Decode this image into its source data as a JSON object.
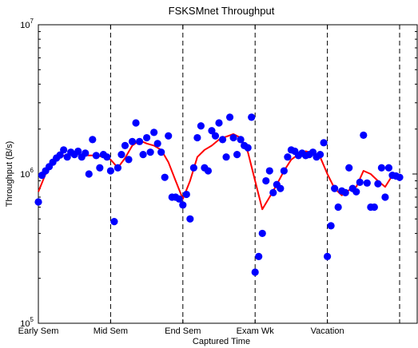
{
  "chart_data": {
    "type": "scatter",
    "title": "FSKSMnet Throughput",
    "xlabel": "Captured Time",
    "ylabel": "Throughput (B/s)",
    "y_scale": "log",
    "ylim": [
      100000,
      10000000
    ],
    "xlim": [
      0,
      100
    ],
    "yticks": [
      {
        "value": 100000,
        "base": "10",
        "exp": "5"
      },
      {
        "value": 1000000,
        "base": "10",
        "exp": "6"
      },
      {
        "value": 10000000,
        "base": "10",
        "exp": "7"
      }
    ],
    "xticks": [
      {
        "value": 0,
        "label": "Early Sem"
      },
      {
        "value": 20,
        "label": "Mid Sem"
      },
      {
        "value": 40,
        "label": "End Sem"
      },
      {
        "value": 60,
        "label": "Exam Wk"
      },
      {
        "value": 80,
        "label": "Vacation"
      },
      {
        "value": 100,
        "label": ""
      }
    ],
    "period_boundaries": [
      20,
      40,
      60,
      80,
      100
    ],
    "grid": false,
    "colors": {
      "points": "#0000ff",
      "line": "#ff0000",
      "boundary": "#000000"
    },
    "series": [
      {
        "kind": "points",
        "x": [
          0,
          1,
          2,
          3,
          4,
          5,
          6,
          7,
          8,
          9,
          10,
          11,
          12,
          13,
          14,
          15,
          16,
          17,
          18,
          19,
          20,
          21,
          22,
          23,
          24,
          25,
          26,
          27,
          28,
          29,
          30,
          31,
          32,
          33,
          34,
          35,
          36,
          37,
          38,
          39,
          40,
          41,
          42,
          43,
          44,
          45,
          46,
          47,
          48,
          49,
          50,
          51,
          52,
          53,
          54,
          55,
          56,
          57,
          58,
          59,
          60,
          61,
          62,
          63,
          64,
          65,
          66,
          67,
          68,
          69,
          70,
          71,
          72,
          73,
          74,
          75,
          76,
          77,
          78,
          79,
          80,
          81,
          82,
          83,
          84,
          85,
          86,
          87,
          88,
          89,
          90,
          91,
          92,
          93,
          94,
          95,
          96,
          97,
          98,
          99,
          100
        ],
        "y": [
          650000,
          980000,
          1050000,
          1120000,
          1200000,
          1280000,
          1340000,
          1450000,
          1300000,
          1400000,
          1350000,
          1420000,
          1300000,
          1380000,
          1000000,
          1700000,
          1330000,
          1100000,
          1350000,
          1300000,
          1050000,
          480000,
          1100000,
          1350000,
          1550000,
          1250000,
          1650000,
          2200000,
          1650000,
          1350000,
          1750000,
          1400000,
          1900000,
          1600000,
          1400000,
          950000,
          1800000,
          700000,
          700000,
          680000,
          620000,
          730000,
          500000,
          1100000,
          1750000,
          2100000,
          1100000,
          1050000,
          1950000,
          1800000,
          2200000,
          1700000,
          1300000,
          2400000,
          1750000,
          1350000,
          1700000,
          1550000,
          1500000,
          2400000,
          220000,
          280000,
          400000,
          900000,
          1050000,
          750000,
          850000,
          800000,
          1050000,
          1300000,
          1450000,
          1420000,
          1330000,
          1380000,
          1330000,
          1350000,
          1400000,
          1300000,
          1350000,
          1620000,
          280000,
          450000,
          800000,
          600000,
          770000,
          750000,
          1100000,
          800000,
          760000,
          880000,
          1820000,
          870000,
          600000,
          600000,
          860000,
          1100000,
          700000,
          1100000,
          980000,
          970000,
          950000
        ]
      },
      {
        "kind": "line",
        "x": [
          0,
          2,
          4,
          6,
          8,
          10,
          12,
          14,
          16,
          18,
          20,
          22,
          24,
          26,
          28,
          30,
          32,
          34,
          36,
          38,
          40,
          42,
          44,
          46,
          48,
          50,
          52,
          54,
          56,
          58,
          60,
          62,
          64,
          66,
          68,
          70,
          72,
          74,
          76,
          78,
          80,
          82,
          84,
          86,
          88,
          90,
          92,
          94,
          96,
          98,
          100
        ],
        "y": [
          760000,
          1000000,
          1160000,
          1300000,
          1350000,
          1360000,
          1350000,
          1330000,
          1330000,
          1300000,
          1250000,
          1100000,
          1280000,
          1550000,
          1680000,
          1600000,
          1550000,
          1450000,
          1200000,
          900000,
          680000,
          900000,
          1300000,
          1450000,
          1550000,
          1700000,
          1780000,
          1850000,
          1750000,
          1400000,
          900000,
          580000,
          700000,
          850000,
          1050000,
          1250000,
          1350000,
          1420000,
          1380000,
          1300000,
          1000000,
          800000,
          720000,
          780000,
          820000,
          1050000,
          1000000,
          900000,
          820000,
          980000,
          950000
        ]
      }
    ]
  }
}
